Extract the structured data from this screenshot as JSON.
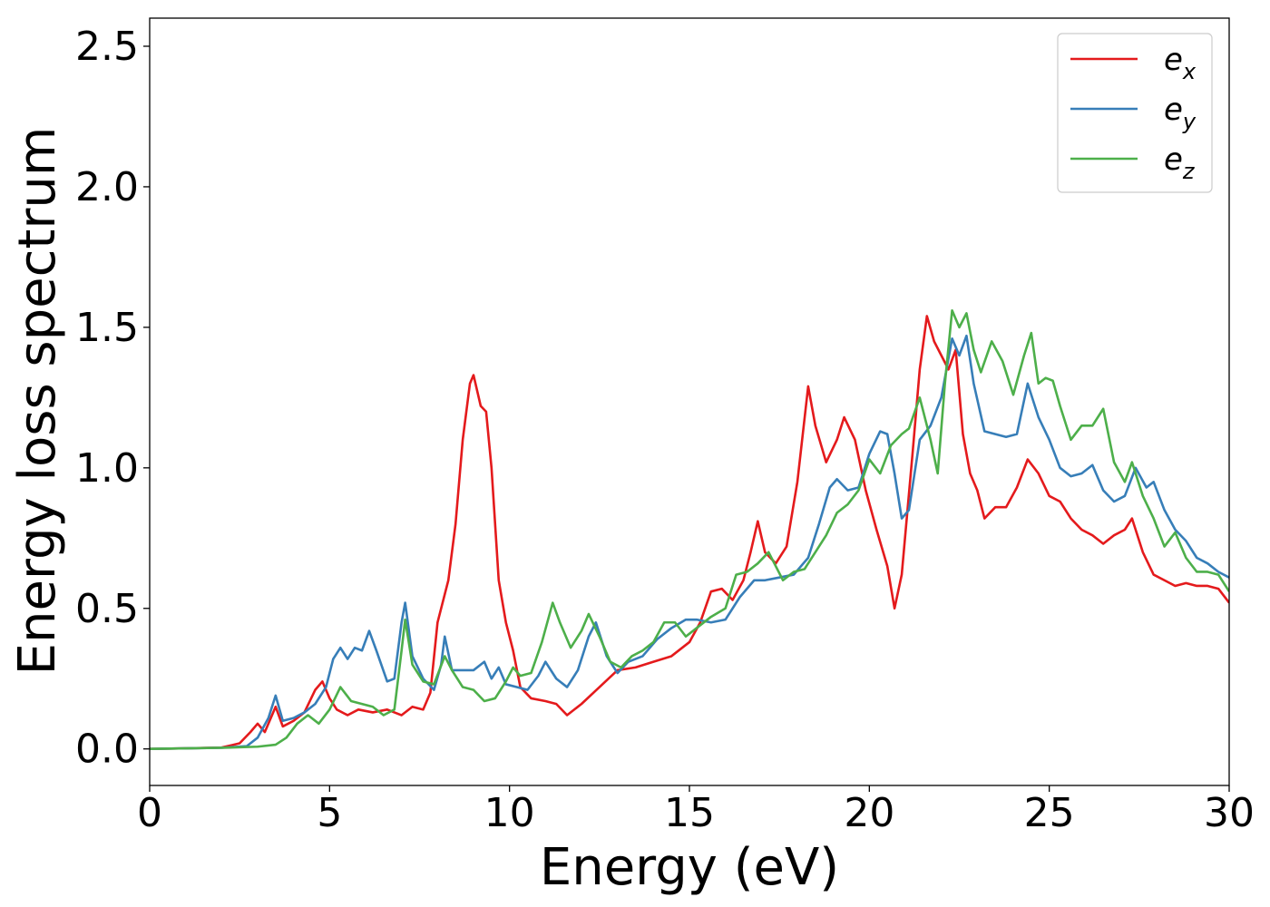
{
  "chart_data": {
    "type": "line",
    "title": "",
    "xlabel": "Energy (eV)",
    "ylabel": "Energy loss spectrum",
    "xlim": [
      0,
      30
    ],
    "ylim": [
      -0.13,
      2.6
    ],
    "xticks": [
      0,
      5,
      10,
      15,
      20,
      25,
      30
    ],
    "yticks": [
      0.0,
      0.5,
      1.0,
      1.5,
      2.0,
      2.5
    ],
    "xtick_labels": [
      "0",
      "5",
      "10",
      "15",
      "20",
      "25",
      "30"
    ],
    "ytick_labels": [
      "0.0",
      "0.5",
      "1.0",
      "1.5",
      "2.0",
      "2.5"
    ],
    "grid": false,
    "legend_position": "top-right",
    "series": [
      {
        "name": "e_x",
        "label_base": "e",
        "label_sub": "x",
        "color": "#e41a1c",
        "points": [
          [
            0,
            0
          ],
          [
            1,
            0.002
          ],
          [
            2,
            0.005
          ],
          [
            2.5,
            0.02
          ],
          [
            2.8,
            0.06
          ],
          [
            3.0,
            0.09
          ],
          [
            3.2,
            0.06
          ],
          [
            3.5,
            0.15
          ],
          [
            3.7,
            0.08
          ],
          [
            4.0,
            0.1
          ],
          [
            4.3,
            0.13
          ],
          [
            4.6,
            0.21
          ],
          [
            4.8,
            0.24
          ],
          [
            5.0,
            0.18
          ],
          [
            5.2,
            0.14
          ],
          [
            5.5,
            0.12
          ],
          [
            5.8,
            0.14
          ],
          [
            6.2,
            0.13
          ],
          [
            6.6,
            0.14
          ],
          [
            7.0,
            0.12
          ],
          [
            7.3,
            0.15
          ],
          [
            7.6,
            0.14
          ],
          [
            7.8,
            0.2
          ],
          [
            8.0,
            0.45
          ],
          [
            8.3,
            0.6
          ],
          [
            8.5,
            0.8
          ],
          [
            8.7,
            1.1
          ],
          [
            8.9,
            1.3
          ],
          [
            9.0,
            1.33
          ],
          [
            9.2,
            1.22
          ],
          [
            9.35,
            1.2
          ],
          [
            9.5,
            1.0
          ],
          [
            9.7,
            0.6
          ],
          [
            9.9,
            0.45
          ],
          [
            10.1,
            0.35
          ],
          [
            10.3,
            0.22
          ],
          [
            10.6,
            0.18
          ],
          [
            11.0,
            0.17
          ],
          [
            11.3,
            0.16
          ],
          [
            11.6,
            0.12
          ],
          [
            12.0,
            0.16
          ],
          [
            12.5,
            0.22
          ],
          [
            13.0,
            0.28
          ],
          [
            13.5,
            0.29
          ],
          [
            14.0,
            0.31
          ],
          [
            14.5,
            0.33
          ],
          [
            15.0,
            0.38
          ],
          [
            15.3,
            0.45
          ],
          [
            15.6,
            0.56
          ],
          [
            15.9,
            0.57
          ],
          [
            16.2,
            0.53
          ],
          [
            16.5,
            0.6
          ],
          [
            16.7,
            0.7
          ],
          [
            16.9,
            0.81
          ],
          [
            17.1,
            0.7
          ],
          [
            17.4,
            0.66
          ],
          [
            17.7,
            0.72
          ],
          [
            18.0,
            0.95
          ],
          [
            18.3,
            1.29
          ],
          [
            18.5,
            1.15
          ],
          [
            18.8,
            1.02
          ],
          [
            19.1,
            1.1
          ],
          [
            19.3,
            1.18
          ],
          [
            19.6,
            1.1
          ],
          [
            19.9,
            0.92
          ],
          [
            20.2,
            0.78
          ],
          [
            20.5,
            0.65
          ],
          [
            20.7,
            0.5
          ],
          [
            20.9,
            0.62
          ],
          [
            21.2,
            1.05
          ],
          [
            21.4,
            1.35
          ],
          [
            21.6,
            1.54
          ],
          [
            21.8,
            1.45
          ],
          [
            22.0,
            1.4
          ],
          [
            22.2,
            1.35
          ],
          [
            22.4,
            1.42
          ],
          [
            22.6,
            1.12
          ],
          [
            22.8,
            0.98
          ],
          [
            23.0,
            0.92
          ],
          [
            23.2,
            0.82
          ],
          [
            23.5,
            0.86
          ],
          [
            23.8,
            0.86
          ],
          [
            24.1,
            0.93
          ],
          [
            24.4,
            1.03
          ],
          [
            24.7,
            0.98
          ],
          [
            25.0,
            0.9
          ],
          [
            25.3,
            0.88
          ],
          [
            25.6,
            0.82
          ],
          [
            25.9,
            0.78
          ],
          [
            26.2,
            0.76
          ],
          [
            26.5,
            0.73
          ],
          [
            26.8,
            0.76
          ],
          [
            27.1,
            0.78
          ],
          [
            27.3,
            0.82
          ],
          [
            27.6,
            0.7
          ],
          [
            27.9,
            0.62
          ],
          [
            28.2,
            0.6
          ],
          [
            28.5,
            0.58
          ],
          [
            28.8,
            0.59
          ],
          [
            29.1,
            0.58
          ],
          [
            29.4,
            0.58
          ],
          [
            29.7,
            0.57
          ],
          [
            30.0,
            0.52
          ]
        ]
      },
      {
        "name": "e_y",
        "label_base": "e",
        "label_sub": "y",
        "color": "#377eb8",
        "points": [
          [
            0,
            0
          ],
          [
            1,
            0.002
          ],
          [
            2,
            0.004
          ],
          [
            2.7,
            0.01
          ],
          [
            3.0,
            0.04
          ],
          [
            3.3,
            0.11
          ],
          [
            3.5,
            0.19
          ],
          [
            3.7,
            0.1
          ],
          [
            4.0,
            0.11
          ],
          [
            4.3,
            0.13
          ],
          [
            4.6,
            0.16
          ],
          [
            4.9,
            0.22
          ],
          [
            5.1,
            0.32
          ],
          [
            5.3,
            0.36
          ],
          [
            5.5,
            0.32
          ],
          [
            5.7,
            0.36
          ],
          [
            5.9,
            0.35
          ],
          [
            6.1,
            0.42
          ],
          [
            6.3,
            0.35
          ],
          [
            6.6,
            0.24
          ],
          [
            6.8,
            0.25
          ],
          [
            7.0,
            0.45
          ],
          [
            7.1,
            0.52
          ],
          [
            7.3,
            0.33
          ],
          [
            7.6,
            0.25
          ],
          [
            7.9,
            0.21
          ],
          [
            8.1,
            0.3
          ],
          [
            8.2,
            0.4
          ],
          [
            8.4,
            0.28
          ],
          [
            8.7,
            0.28
          ],
          [
            9.0,
            0.28
          ],
          [
            9.3,
            0.31
          ],
          [
            9.5,
            0.25
          ],
          [
            9.7,
            0.29
          ],
          [
            9.9,
            0.23
          ],
          [
            10.2,
            0.22
          ],
          [
            10.5,
            0.21
          ],
          [
            10.8,
            0.26
          ],
          [
            11.0,
            0.31
          ],
          [
            11.3,
            0.25
          ],
          [
            11.6,
            0.22
          ],
          [
            11.9,
            0.28
          ],
          [
            12.2,
            0.4
          ],
          [
            12.4,
            0.45
          ],
          [
            12.7,
            0.33
          ],
          [
            13.0,
            0.27
          ],
          [
            13.3,
            0.31
          ],
          [
            13.7,
            0.33
          ],
          [
            14.1,
            0.39
          ],
          [
            14.5,
            0.43
          ],
          [
            14.9,
            0.46
          ],
          [
            15.2,
            0.46
          ],
          [
            15.6,
            0.45
          ],
          [
            16.0,
            0.46
          ],
          [
            16.4,
            0.54
          ],
          [
            16.8,
            0.6
          ],
          [
            17.1,
            0.6
          ],
          [
            17.5,
            0.61
          ],
          [
            17.9,
            0.62
          ],
          [
            18.3,
            0.68
          ],
          [
            18.6,
            0.8
          ],
          [
            18.9,
            0.93
          ],
          [
            19.1,
            0.96
          ],
          [
            19.4,
            0.92
          ],
          [
            19.7,
            0.93
          ],
          [
            20.0,
            1.05
          ],
          [
            20.3,
            1.13
          ],
          [
            20.5,
            1.12
          ],
          [
            20.7,
            0.98
          ],
          [
            20.9,
            0.82
          ],
          [
            21.1,
            0.85
          ],
          [
            21.4,
            1.1
          ],
          [
            21.7,
            1.15
          ],
          [
            22.0,
            1.25
          ],
          [
            22.3,
            1.46
          ],
          [
            22.5,
            1.4
          ],
          [
            22.7,
            1.47
          ],
          [
            22.9,
            1.3
          ],
          [
            23.2,
            1.13
          ],
          [
            23.5,
            1.12
          ],
          [
            23.8,
            1.11
          ],
          [
            24.1,
            1.12
          ],
          [
            24.4,
            1.3
          ],
          [
            24.7,
            1.18
          ],
          [
            25.0,
            1.1
          ],
          [
            25.3,
            1.0
          ],
          [
            25.6,
            0.97
          ],
          [
            25.9,
            0.98
          ],
          [
            26.2,
            1.01
          ],
          [
            26.5,
            0.92
          ],
          [
            26.8,
            0.88
          ],
          [
            27.1,
            0.9
          ],
          [
            27.4,
            1.0
          ],
          [
            27.7,
            0.93
          ],
          [
            27.9,
            0.95
          ],
          [
            28.2,
            0.85
          ],
          [
            28.5,
            0.78
          ],
          [
            28.8,
            0.74
          ],
          [
            29.1,
            0.68
          ],
          [
            29.4,
            0.66
          ],
          [
            29.7,
            0.63
          ],
          [
            30.0,
            0.61
          ]
        ]
      },
      {
        "name": "e_z",
        "label_base": "e",
        "label_sub": "z",
        "color": "#4daf4a",
        "points": [
          [
            0,
            0
          ],
          [
            1,
            0.002
          ],
          [
            2,
            0.004
          ],
          [
            3.0,
            0.008
          ],
          [
            3.5,
            0.015
          ],
          [
            3.8,
            0.04
          ],
          [
            4.1,
            0.09
          ],
          [
            4.4,
            0.12
          ],
          [
            4.7,
            0.09
          ],
          [
            5.0,
            0.14
          ],
          [
            5.3,
            0.22
          ],
          [
            5.6,
            0.17
          ],
          [
            5.9,
            0.16
          ],
          [
            6.2,
            0.15
          ],
          [
            6.5,
            0.12
          ],
          [
            6.8,
            0.14
          ],
          [
            7.0,
            0.35
          ],
          [
            7.1,
            0.46
          ],
          [
            7.3,
            0.3
          ],
          [
            7.6,
            0.24
          ],
          [
            7.9,
            0.23
          ],
          [
            8.2,
            0.33
          ],
          [
            8.4,
            0.28
          ],
          [
            8.7,
            0.22
          ],
          [
            9.0,
            0.21
          ],
          [
            9.3,
            0.17
          ],
          [
            9.6,
            0.18
          ],
          [
            9.9,
            0.24
          ],
          [
            10.1,
            0.29
          ],
          [
            10.3,
            0.26
          ],
          [
            10.6,
            0.27
          ],
          [
            10.9,
            0.38
          ],
          [
            11.2,
            0.52
          ],
          [
            11.4,
            0.45
          ],
          [
            11.7,
            0.36
          ],
          [
            12.0,
            0.42
          ],
          [
            12.2,
            0.48
          ],
          [
            12.5,
            0.4
          ],
          [
            12.8,
            0.31
          ],
          [
            13.1,
            0.29
          ],
          [
            13.4,
            0.33
          ],
          [
            13.7,
            0.35
          ],
          [
            14.0,
            0.38
          ],
          [
            14.3,
            0.45
          ],
          [
            14.6,
            0.45
          ],
          [
            14.9,
            0.4
          ],
          [
            15.2,
            0.43
          ],
          [
            15.6,
            0.47
          ],
          [
            16.0,
            0.5
          ],
          [
            16.3,
            0.62
          ],
          [
            16.6,
            0.63
          ],
          [
            16.9,
            0.66
          ],
          [
            17.2,
            0.7
          ],
          [
            17.6,
            0.6
          ],
          [
            17.9,
            0.63
          ],
          [
            18.2,
            0.64
          ],
          [
            18.5,
            0.7
          ],
          [
            18.8,
            0.76
          ],
          [
            19.1,
            0.84
          ],
          [
            19.4,
            0.87
          ],
          [
            19.7,
            0.92
          ],
          [
            20.0,
            1.03
          ],
          [
            20.3,
            0.98
          ],
          [
            20.6,
            1.08
          ],
          [
            20.9,
            1.12
          ],
          [
            21.1,
            1.14
          ],
          [
            21.4,
            1.25
          ],
          [
            21.7,
            1.1
          ],
          [
            21.9,
            0.98
          ],
          [
            22.1,
            1.3
          ],
          [
            22.3,
            1.56
          ],
          [
            22.5,
            1.5
          ],
          [
            22.7,
            1.55
          ],
          [
            22.9,
            1.42
          ],
          [
            23.1,
            1.34
          ],
          [
            23.4,
            1.45
          ],
          [
            23.7,
            1.38
          ],
          [
            24.0,
            1.26
          ],
          [
            24.3,
            1.4
          ],
          [
            24.5,
            1.48
          ],
          [
            24.7,
            1.3
          ],
          [
            24.9,
            1.32
          ],
          [
            25.1,
            1.31
          ],
          [
            25.3,
            1.22
          ],
          [
            25.6,
            1.1
          ],
          [
            25.9,
            1.15
          ],
          [
            26.2,
            1.15
          ],
          [
            26.5,
            1.21
          ],
          [
            26.8,
            1.02
          ],
          [
            27.1,
            0.95
          ],
          [
            27.3,
            1.02
          ],
          [
            27.6,
            0.9
          ],
          [
            27.9,
            0.82
          ],
          [
            28.2,
            0.72
          ],
          [
            28.5,
            0.77
          ],
          [
            28.8,
            0.68
          ],
          [
            29.1,
            0.63
          ],
          [
            29.4,
            0.63
          ],
          [
            29.7,
            0.62
          ],
          [
            30.0,
            0.56
          ]
        ]
      }
    ]
  }
}
